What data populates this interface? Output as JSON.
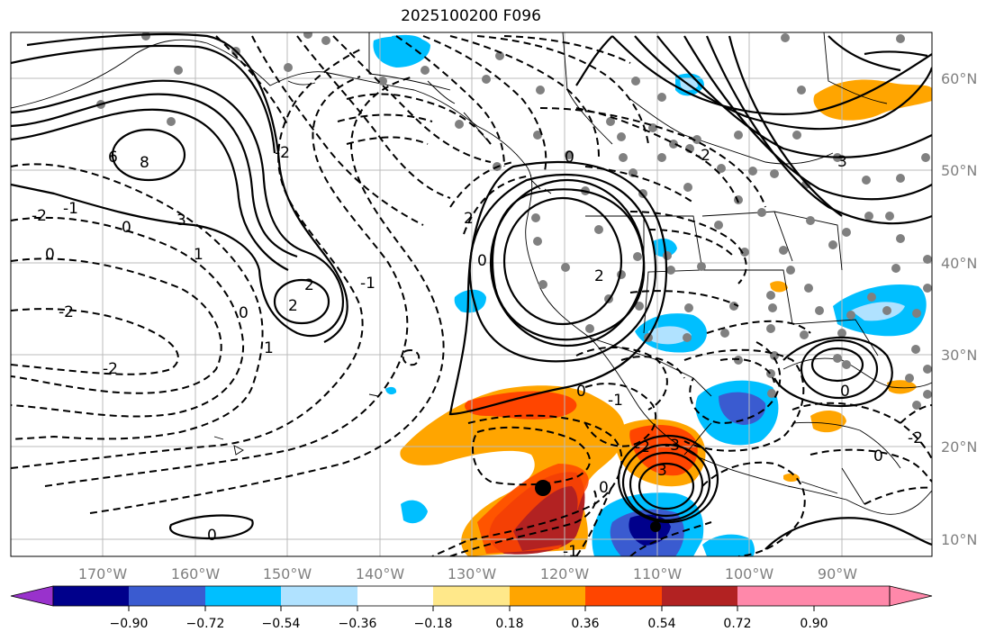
{
  "title": "2025100200 F096",
  "latitude_labels": [
    "60°N",
    "50°N",
    "40°N",
    "30°N",
    "20°N",
    "10°N"
  ],
  "longitude_labels": [
    "170°W",
    "160°W",
    "150°W",
    "140°W",
    "130°W",
    "120°W",
    "110°W",
    "100°W",
    "90°W"
  ],
  "colorbar": {
    "ticks": [
      "−0.90",
      "−0.72",
      "−0.54",
      "−0.36",
      "−0.18",
      "0.18",
      "0.36",
      "0.54",
      "0.72",
      "0.90"
    ],
    "colors": [
      "#9932cc",
      "#00008b",
      "#3a5bd0",
      "#00bfff",
      "#b0e2ff",
      "#ffffff",
      "#ffe88a",
      "#ffa500",
      "#ff4500",
      "#b22222",
      "#ff88aa"
    ]
  },
  "contour_labels": [
    "6",
    "8",
    "3",
    "1",
    "0",
    "2",
    "-2",
    "-1",
    "0",
    "2",
    "-2",
    "1",
    "0",
    "-2",
    "2",
    "0",
    "2",
    "0",
    "-1",
    "-2",
    "3",
    "-2",
    "0",
    "0",
    "-2",
    "0",
    "-1",
    "3",
    "0",
    "-3",
    "-2",
    "-1",
    "0"
  ]
}
